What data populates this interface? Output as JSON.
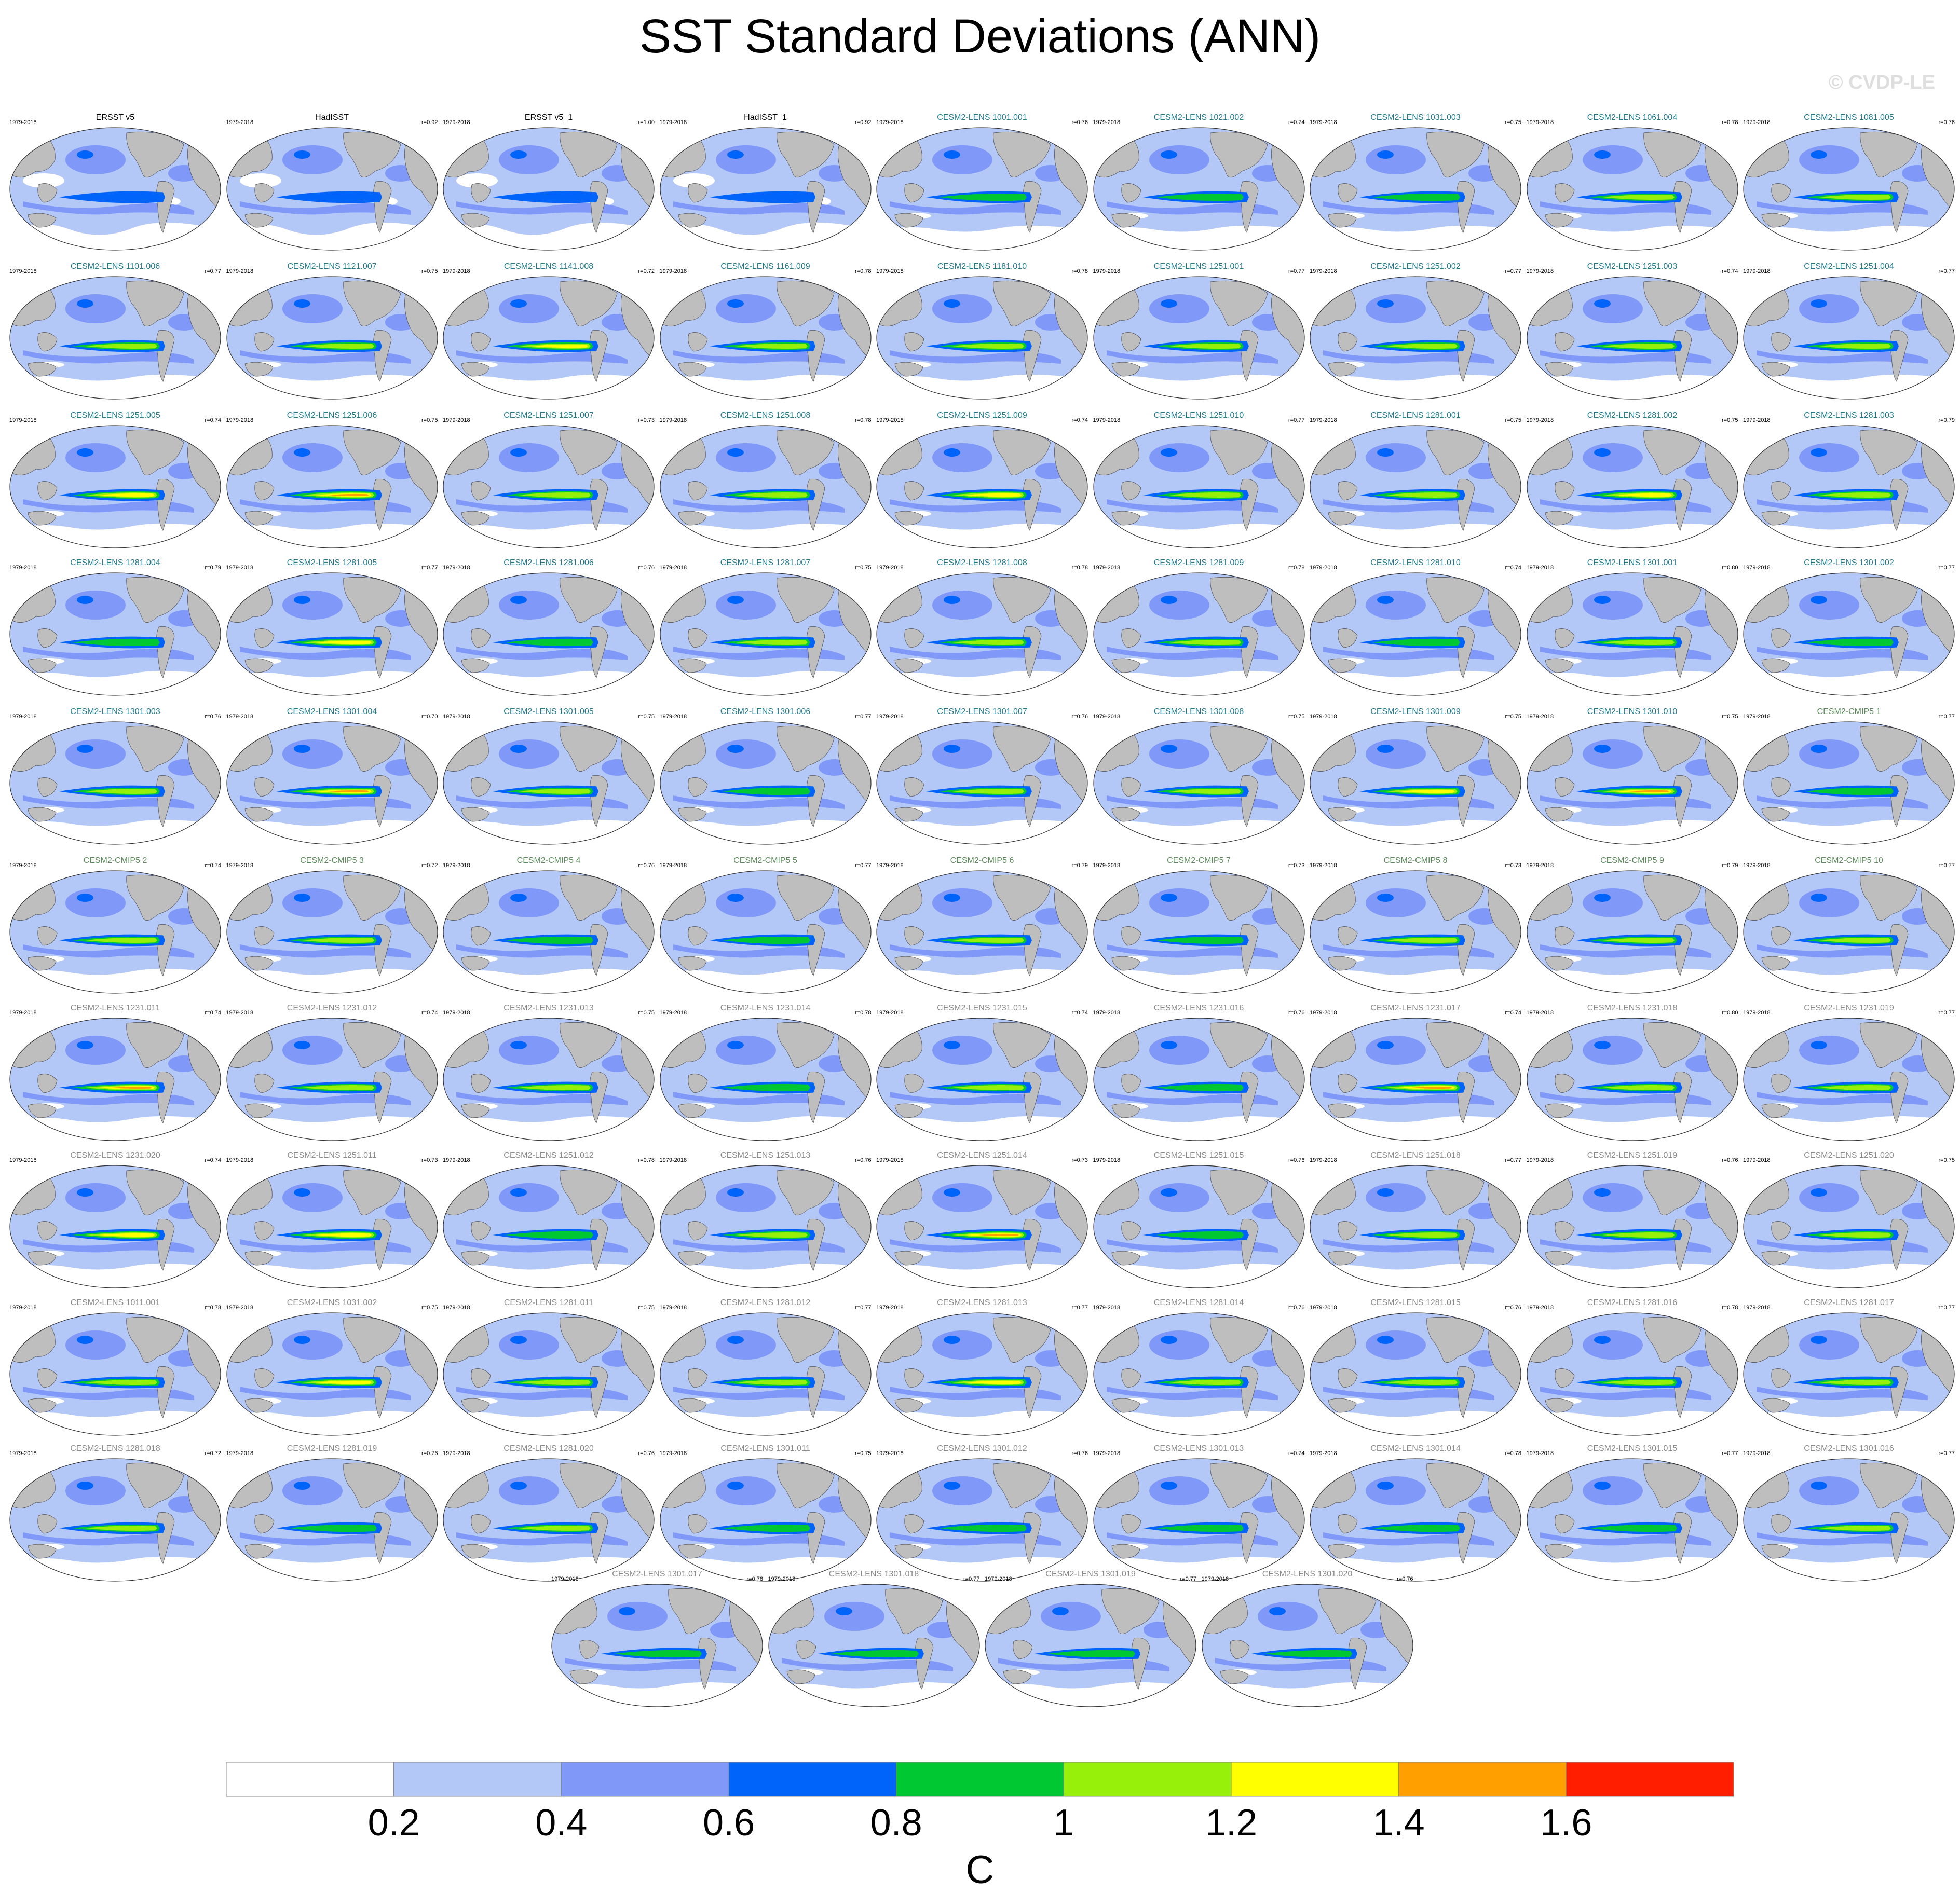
{
  "title": "SST Standard Deviations (ANN)",
  "watermark": "© CVDP-LE",
  "colors": {
    "obs_title": "#000000",
    "cesm2_lens_title": "#1f7a8c",
    "cmip5_title": "#5a8a5a",
    "other_title": "#8a8a8a",
    "land": "#bebebe",
    "levels": [
      "#ffffff",
      "#b4c8f8",
      "#8098f8",
      "#0064fa",
      "#00c832",
      "#96f00a",
      "#ffff00",
      "#ffa000",
      "#ff1e00"
    ]
  },
  "colorbar": {
    "ticks": [
      "0.2",
      "0.4",
      "0.6",
      "0.8",
      "1",
      "1.2",
      "1.4",
      "1.6"
    ],
    "unit": "C"
  },
  "panels": [
    {
      "title": "ERSST v5",
      "years": "1979-2018",
      "corr": "",
      "group": "obs",
      "var": 0
    },
    {
      "title": "HadISST",
      "years": "1979-2018",
      "corr": "r=0.92",
      "group": "obs",
      "var": 0
    },
    {
      "title": "ERSST v5_1",
      "years": "1979-2018",
      "corr": "r=1.00",
      "group": "obs",
      "var": 0
    },
    {
      "title": "HadISST_1",
      "years": "1979-2018",
      "corr": "r=0.92",
      "group": "obs",
      "var": 0
    },
    {
      "title": "CESM2-LENS 1001.001",
      "years": "1979-2018",
      "corr": "r=0.76",
      "group": "cesm2",
      "var": 1
    },
    {
      "title": "CESM2-LENS 1021.002",
      "years": "1979-2018",
      "corr": "r=0.74",
      "group": "cesm2",
      "var": 1
    },
    {
      "title": "CESM2-LENS 1031.003",
      "years": "1979-2018",
      "corr": "r=0.75",
      "group": "cesm2",
      "var": 1
    },
    {
      "title": "CESM2-LENS 1061.004",
      "years": "1979-2018",
      "corr": "r=0.78",
      "group": "cesm2",
      "var": 2
    },
    {
      "title": "CESM2-LENS 1081.005",
      "years": "1979-2018",
      "corr": "r=0.76",
      "group": "cesm2",
      "var": 2
    },
    {
      "title": "CESM2-LENS 1101.006",
      "years": "1979-2018",
      "corr": "r=0.77",
      "group": "cesm2",
      "var": 2
    },
    {
      "title": "CESM2-LENS 1121.007",
      "years": "1979-2018",
      "corr": "r=0.75",
      "group": "cesm2",
      "var": 2
    },
    {
      "title": "CESM2-LENS 1141.008",
      "years": "1979-2018",
      "corr": "r=0.72",
      "group": "cesm2",
      "var": 3
    },
    {
      "title": "CESM2-LENS 1161.009",
      "years": "1979-2018",
      "corr": "r=0.78",
      "group": "cesm2",
      "var": 2
    },
    {
      "title": "CESM2-LENS 1181.010",
      "years": "1979-2018",
      "corr": "r=0.78",
      "group": "cesm2",
      "var": 2
    },
    {
      "title": "CESM2-LENS 1251.001",
      "years": "1979-2018",
      "corr": "r=0.77",
      "group": "cesm2",
      "var": 2
    },
    {
      "title": "CESM2-LENS 1251.002",
      "years": "1979-2018",
      "corr": "r=0.77",
      "group": "cesm2",
      "var": 2
    },
    {
      "title": "CESM2-LENS 1251.003",
      "years": "1979-2018",
      "corr": "r=0.74",
      "group": "cesm2",
      "var": 2
    },
    {
      "title": "CESM2-LENS 1251.004",
      "years": "1979-2018",
      "corr": "r=0.77",
      "group": "cesm2",
      "var": 2
    },
    {
      "title": "CESM2-LENS 1251.005",
      "years": "1979-2018",
      "corr": "r=0.74",
      "group": "cesm2",
      "var": 3
    },
    {
      "title": "CESM2-LENS 1251.006",
      "years": "1979-2018",
      "corr": "r=0.75",
      "group": "cesm2",
      "var": 4
    },
    {
      "title": "CESM2-LENS 1251.007",
      "years": "1979-2018",
      "corr": "r=0.73",
      "group": "cesm2",
      "var": 2
    },
    {
      "title": "CESM2-LENS 1251.008",
      "years": "1979-2018",
      "corr": "r=0.78",
      "group": "cesm2",
      "var": 2
    },
    {
      "title": "CESM2-LENS 1251.009",
      "years": "1979-2018",
      "corr": "r=0.74",
      "group": "cesm2",
      "var": 3
    },
    {
      "title": "CESM2-LENS 1251.010",
      "years": "1979-2018",
      "corr": "r=0.77",
      "group": "cesm2",
      "var": 2
    },
    {
      "title": "CESM2-LENS 1281.001",
      "years": "1979-2018",
      "corr": "r=0.75",
      "group": "cesm2",
      "var": 2
    },
    {
      "title": "CESM2-LENS 1281.002",
      "years": "1979-2018",
      "corr": "r=0.75",
      "group": "cesm2",
      "var": 3
    },
    {
      "title": "CESM2-LENS 1281.003",
      "years": "1979-2018",
      "corr": "r=0.79",
      "group": "cesm2",
      "var": 2
    },
    {
      "title": "CESM2-LENS 1281.004",
      "years": "1979-2018",
      "corr": "r=0.79",
      "group": "cesm2",
      "var": 1
    },
    {
      "title": "CESM2-LENS 1281.005",
      "years": "1979-2018",
      "corr": "r=0.77",
      "group": "cesm2",
      "var": 3
    },
    {
      "title": "CESM2-LENS 1281.006",
      "years": "1979-2018",
      "corr": "r=0.76",
      "group": "cesm2",
      "var": 1
    },
    {
      "title": "CESM2-LENS 1281.007",
      "years": "1979-2018",
      "corr": "r=0.75",
      "group": "cesm2",
      "var": 2
    },
    {
      "title": "CESM2-LENS 1281.008",
      "years": "1979-2018",
      "corr": "r=0.78",
      "group": "cesm2",
      "var": 2
    },
    {
      "title": "CESM2-LENS 1281.009",
      "years": "1979-2018",
      "corr": "r=0.78",
      "group": "cesm2",
      "var": 2
    },
    {
      "title": "CESM2-LENS 1281.010",
      "years": "1979-2018",
      "corr": "r=0.74",
      "group": "cesm2",
      "var": 1
    },
    {
      "title": "CESM2-LENS 1301.001",
      "years": "1979-2018",
      "corr": "r=0.80",
      "group": "cesm2",
      "var": 2
    },
    {
      "title": "CESM2-LENS 1301.002",
      "years": "1979-2018",
      "corr": "r=0.77",
      "group": "cesm2",
      "var": 1
    },
    {
      "title": "CESM2-LENS 1301.003",
      "years": "1979-2018",
      "corr": "r=0.76",
      "group": "cesm2",
      "var": 2
    },
    {
      "title": "CESM2-LENS 1301.004",
      "years": "1979-2018",
      "corr": "r=0.70",
      "group": "cesm2",
      "var": 4
    },
    {
      "title": "CESM2-LENS 1301.005",
      "years": "1979-2018",
      "corr": "r=0.75",
      "group": "cesm2",
      "var": 2
    },
    {
      "title": "CESM2-LENS 1301.006",
      "years": "1979-2018",
      "corr": "r=0.77",
      "group": "cesm2",
      "var": 1
    },
    {
      "title": "CESM2-LENS 1301.007",
      "years": "1979-2018",
      "corr": "r=0.76",
      "group": "cesm2",
      "var": 2
    },
    {
      "title": "CESM2-LENS 1301.008",
      "years": "1979-2018",
      "corr": "r=0.75",
      "group": "cesm2",
      "var": 2
    },
    {
      "title": "CESM2-LENS 1301.009",
      "years": "1979-2018",
      "corr": "r=0.75",
      "group": "cesm2",
      "var": 3
    },
    {
      "title": "CESM2-LENS 1301.010",
      "years": "1979-2018",
      "corr": "r=0.75",
      "group": "cesm2",
      "var": 4
    },
    {
      "title": "CESM2-CMIP5 1",
      "years": "1979-2018",
      "corr": "r=0.77",
      "group": "cmip5",
      "var": 1
    },
    {
      "title": "CESM2-CMIP5 2",
      "years": "1979-2018",
      "corr": "r=0.74",
      "group": "cmip5",
      "var": 2
    },
    {
      "title": "CESM2-CMIP5 3",
      "years": "1979-2018",
      "corr": "r=0.72",
      "group": "cmip5",
      "var": 2
    },
    {
      "title": "CESM2-CMIP5 4",
      "years": "1979-2018",
      "corr": "r=0.76",
      "group": "cmip5",
      "var": 1
    },
    {
      "title": "CESM2-CMIP5 5",
      "years": "1979-2018",
      "corr": "r=0.77",
      "group": "cmip5",
      "var": 1
    },
    {
      "title": "CESM2-CMIP5 6",
      "years": "1979-2018",
      "corr": "r=0.79",
      "group": "cmip5",
      "var": 2
    },
    {
      "title": "CESM2-CMIP5 7",
      "years": "1979-2018",
      "corr": "r=0.73",
      "group": "cmip5",
      "var": 1
    },
    {
      "title": "CESM2-CMIP5 8",
      "years": "1979-2018",
      "corr": "r=0.73",
      "group": "cmip5",
      "var": 2
    },
    {
      "title": "CESM2-CMIP5 9",
      "years": "1979-2018",
      "corr": "r=0.79",
      "group": "cmip5",
      "var": 2
    },
    {
      "title": "CESM2-CMIP5 10",
      "years": "1979-2018",
      "corr": "r=0.77",
      "group": "cmip5",
      "var": 2
    },
    {
      "title": "CESM2-LENS 1231.011",
      "years": "1979-2018",
      "corr": "r=0.74",
      "group": "other",
      "var": 4
    },
    {
      "title": "CESM2-LENS 1231.012",
      "years": "1979-2018",
      "corr": "r=0.74",
      "group": "other",
      "var": 2
    },
    {
      "title": "CESM2-LENS 1231.013",
      "years": "1979-2018",
      "corr": "r=0.75",
      "group": "other",
      "var": 2
    },
    {
      "title": "CESM2-LENS 1231.014",
      "years": "1979-2018",
      "corr": "r=0.78",
      "group": "other",
      "var": 1
    },
    {
      "title": "CESM2-LENS 1231.015",
      "years": "1979-2018",
      "corr": "r=0.74",
      "group": "other",
      "var": 2
    },
    {
      "title": "CESM2-LENS 1231.016",
      "years": "1979-2018",
      "corr": "r=0.76",
      "group": "other",
      "var": 1
    },
    {
      "title": "CESM2-LENS 1231.017",
      "years": "1979-2018",
      "corr": "r=0.74",
      "group": "other",
      "var": 4
    },
    {
      "title": "CESM2-LENS 1231.018",
      "years": "1979-2018",
      "corr": "r=0.80",
      "group": "other",
      "var": 2
    },
    {
      "title": "CESM2-LENS 1231.019",
      "years": "1979-2018",
      "corr": "r=0.77",
      "group": "other",
      "var": 2
    },
    {
      "title": "CESM2-LENS 1231.020",
      "years": "1979-2018",
      "corr": "r=0.74",
      "group": "other",
      "var": 3
    },
    {
      "title": "CESM2-LENS 1251.011",
      "years": "1979-2018",
      "corr": "r=0.73",
      "group": "other",
      "var": 3
    },
    {
      "title": "CESM2-LENS 1251.012",
      "years": "1979-2018",
      "corr": "r=0.78",
      "group": "other",
      "var": 1
    },
    {
      "title": "CESM2-LENS 1251.013",
      "years": "1979-2018",
      "corr": "r=0.76",
      "group": "other",
      "var": 2
    },
    {
      "title": "CESM2-LENS 1251.014",
      "years": "1979-2018",
      "corr": "r=0.73",
      "group": "other",
      "var": 4
    },
    {
      "title": "CESM2-LENS 1251.015",
      "years": "1979-2018",
      "corr": "r=0.76",
      "group": "other",
      "var": 1
    },
    {
      "title": "CESM2-LENS 1251.018",
      "years": "1979-2018",
      "corr": "r=0.77",
      "group": "other",
      "var": 2
    },
    {
      "title": "CESM2-LENS 1251.019",
      "years": "1979-2018",
      "corr": "r=0.76",
      "group": "other",
      "var": 2
    },
    {
      "title": "CESM2-LENS 1251.020",
      "years": "1979-2018",
      "corr": "r=0.75",
      "group": "other",
      "var": 2
    },
    {
      "title": "CESM2-LENS 1011.001",
      "years": "1979-2018",
      "corr": "r=0.78",
      "group": "other",
      "var": 2
    },
    {
      "title": "CESM2-LENS 1031.002",
      "years": "1979-2018",
      "corr": "r=0.75",
      "group": "other",
      "var": 3
    },
    {
      "title": "CESM2-LENS 1281.011",
      "years": "1979-2018",
      "corr": "r=0.75",
      "group": "other",
      "var": 2
    },
    {
      "title": "CESM2-LENS 1281.012",
      "years": "1979-2018",
      "corr": "r=0.77",
      "group": "other",
      "var": 2
    },
    {
      "title": "CESM2-LENS 1281.013",
      "years": "1979-2018",
      "corr": "r=0.77",
      "group": "other",
      "var": 3
    },
    {
      "title": "CESM2-LENS 1281.014",
      "years": "1979-2018",
      "corr": "r=0.76",
      "group": "other",
      "var": 2
    },
    {
      "title": "CESM2-LENS 1281.015",
      "years": "1979-2018",
      "corr": "r=0.76",
      "group": "other",
      "var": 2
    },
    {
      "title": "CESM2-LENS 1281.016",
      "years": "1979-2018",
      "corr": "r=0.78",
      "group": "other",
      "var": 2
    },
    {
      "title": "CESM2-LENS 1281.017",
      "years": "1979-2018",
      "corr": "r=0.77",
      "group": "other",
      "var": 2
    },
    {
      "title": "CESM2-LENS 1281.018",
      "years": "1979-2018",
      "corr": "r=0.72",
      "group": "other",
      "var": 2
    },
    {
      "title": "CESM2-LENS 1281.019",
      "years": "1979-2018",
      "corr": "r=0.76",
      "group": "other",
      "var": 1
    },
    {
      "title": "CESM2-LENS 1281.020",
      "years": "1979-2018",
      "corr": "r=0.76",
      "group": "other",
      "var": 2
    },
    {
      "title": "CESM2-LENS 1301.011",
      "years": "1979-2018",
      "corr": "r=0.75",
      "group": "other",
      "var": 1
    },
    {
      "title": "CESM2-LENS 1301.012",
      "years": "1979-2018",
      "corr": "r=0.76",
      "group": "other",
      "var": 1
    },
    {
      "title": "CESM2-LENS 1301.013",
      "years": "1979-2018",
      "corr": "r=0.74",
      "group": "other",
      "var": 1
    },
    {
      "title": "CESM2-LENS 1301.014",
      "years": "1979-2018",
      "corr": "r=0.78",
      "group": "other",
      "var": 1
    },
    {
      "title": "CESM2-LENS 1301.015",
      "years": "1979-2018",
      "corr": "r=0.77",
      "group": "other",
      "var": 1
    },
    {
      "title": "CESM2-LENS 1301.016",
      "years": "1979-2018",
      "corr": "r=0.77",
      "group": "other",
      "var": 2
    },
    {
      "title": "CESM2-LENS 1301.017",
      "years": "1979-2018",
      "corr": "r=0.78",
      "group": "other",
      "var": 1
    },
    {
      "title": "CESM2-LENS 1301.018",
      "years": "1979-2018",
      "corr": "r=0.77",
      "group": "other",
      "var": 1
    },
    {
      "title": "CESM2-LENS 1301.019",
      "years": "1979-2018",
      "corr": "r=0.77",
      "group": "other",
      "var": 1
    },
    {
      "title": "CESM2-LENS 1301.020",
      "years": "1979-2018",
      "corr": "r=0.76",
      "group": "other",
      "var": 1
    }
  ]
}
